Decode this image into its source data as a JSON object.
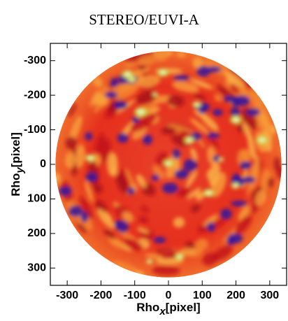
{
  "chart_data": {
    "type": "image",
    "title": "STEREO/EUVI-A",
    "xlabel": {
      "text": "Rho",
      "sub": "x",
      "unit": "[pixel]"
    },
    "ylabel": {
      "text": "Rho",
      "sub": "y",
      "unit": "[pixel]"
    },
    "xlim": [
      -350,
      350
    ],
    "ylim": [
      -350,
      350
    ],
    "y_inverted": true,
    "xticks": [
      -300,
      -200,
      -100,
      0,
      100,
      200,
      300
    ],
    "yticks": [
      -300,
      -200,
      -100,
      0,
      100,
      200,
      300
    ],
    "disk_radius": 335
  }
}
